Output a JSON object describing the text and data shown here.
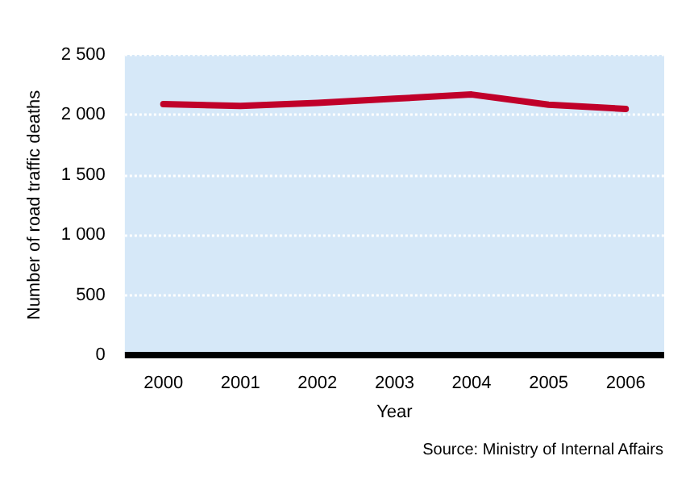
{
  "chart_data": {
    "type": "line",
    "xlabel": "Year",
    "ylabel": "Number of road traffic deaths",
    "categories": [
      "2000",
      "2001",
      "2002",
      "2003",
      "2004",
      "2005",
      "2006"
    ],
    "series": [
      {
        "color": "#c0002a",
        "values": [
          2090,
          2075,
          2100,
          2135,
          2170,
          2085,
          2050
        ]
      }
    ],
    "ylim": [
      0,
      2500
    ],
    "yticks": [
      0,
      500,
      {
        "value": 1000,
        "label": "1 000"
      },
      {
        "value": 1500,
        "label": "1 500"
      },
      {
        "value": 2000,
        "label": "2 000"
      },
      {
        "value": 2500,
        "label": "2 500"
      }
    ],
    "grid": "y",
    "marker": "none",
    "line_style": "solid",
    "annotations": [
      "Source: Ministry of Internal Affairs"
    ]
  }
}
